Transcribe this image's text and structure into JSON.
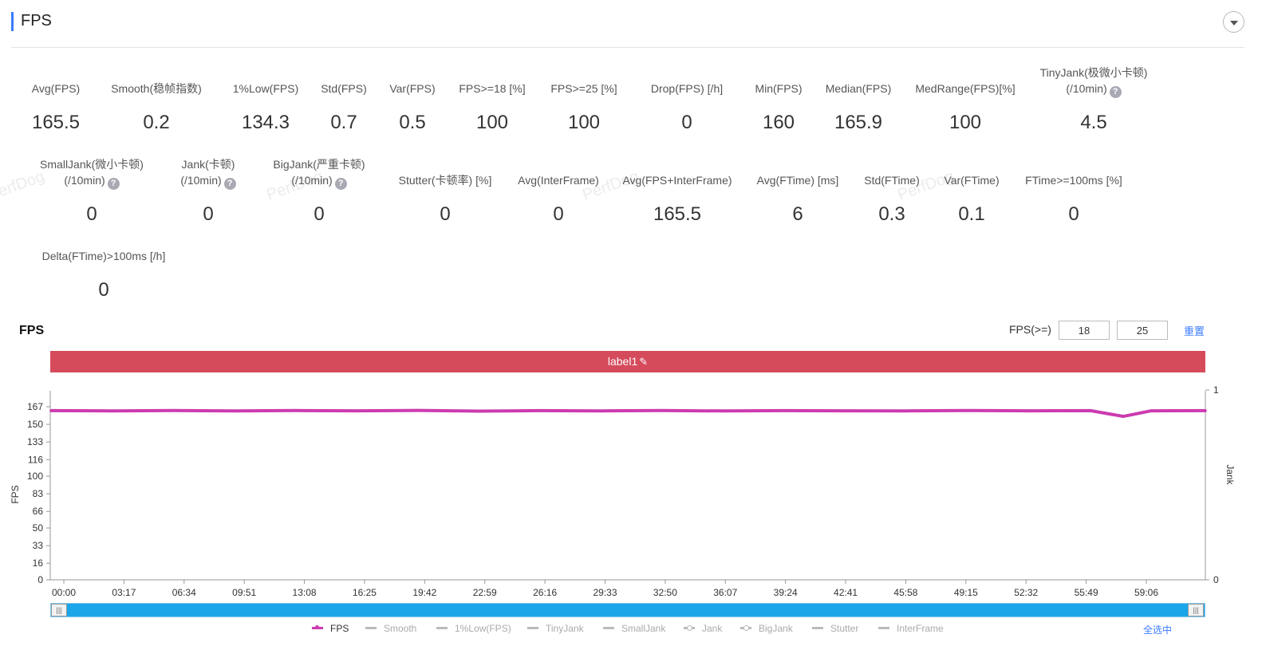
{
  "header": {
    "title": "FPS"
  },
  "metrics": [
    {
      "label": "Avg(FPS)",
      "value": "165.5"
    },
    {
      "label": "Smooth(稳帧指数)",
      "value": "0.2",
      "help": "?"
    },
    {
      "label": "1%Low(FPS)",
      "value": "134.3"
    },
    {
      "label": "Std(FPS)",
      "value": "0.7"
    },
    {
      "label": "Var(FPS)",
      "value": "0.5"
    },
    {
      "label": "FPS>=18 [%]",
      "value": "100"
    },
    {
      "label": "FPS>=25 [%]",
      "value": "100"
    },
    {
      "label": "Drop(FPS) [/h]",
      "value": "0",
      "help": "?"
    },
    {
      "label": "Min(FPS)",
      "value": "160"
    },
    {
      "label": "Median(FPS)",
      "value": "165.9"
    },
    {
      "label": "MedRange(FPS)[%]",
      "value": "100"
    },
    {
      "label": "TinyJank(极微小卡顿)",
      "label2": "(/10min)",
      "value": "4.5",
      "help": "?"
    },
    {
      "label": "SmallJank(微小卡顿)",
      "label2": "(/10min)",
      "value": "0",
      "help": "?"
    },
    {
      "label": "Jank(卡顿)",
      "label2": "(/10min)",
      "value": "0",
      "help": "?"
    },
    {
      "label": "BigJank(严重卡顿)",
      "label2": "(/10min)",
      "value": "0",
      "help": "?"
    },
    {
      "label": "Stutter(卡顿率) [%]",
      "value": "0"
    },
    {
      "label": "Avg(InterFrame)",
      "value": "0"
    },
    {
      "label": "Avg(FPS+InterFrame)",
      "value": "165.5"
    },
    {
      "label": "Avg(FTime) [ms]",
      "value": "6"
    },
    {
      "label": "Std(FTime)",
      "value": "0.3"
    },
    {
      "label": "Var(FTime)",
      "value": "0.1"
    },
    {
      "label": "FTime>=100ms [%]",
      "value": "0"
    },
    {
      "label": "Delta(FTime)>100ms [/h]",
      "value": "0",
      "help": "?"
    }
  ],
  "watermark": "PerfDog",
  "chart_section": {
    "title": "FPS",
    "fps_ge_label": "FPS(>=)",
    "threshold1": "18",
    "threshold2": "25",
    "reset_label": "重置",
    "label_band": "label1",
    "select_all": "全选中",
    "handle_glyph": "|||"
  },
  "icons": {
    "collapse": "chevron-down-icon",
    "edit": "pencil-icon",
    "help": "question-icon"
  },
  "colors": {
    "accent": "#3b7cff",
    "fps_line": "#cc3bb0",
    "label_band": "#d54b5c",
    "slider": "#1aa6e8"
  },
  "chart_data": {
    "type": "line",
    "ylabel": "FPS",
    "y2label": "Jank",
    "ylim": [
      0,
      175
    ],
    "yticks": [
      0,
      16,
      33,
      50,
      66,
      83,
      100,
      116,
      133,
      150,
      167
    ],
    "y2ticks": [
      0,
      1
    ],
    "xticks": [
      "00:00",
      "03:17",
      "06:34",
      "09:51",
      "13:08",
      "16:25",
      "19:42",
      "22:59",
      "26:16",
      "29:33",
      "32:50",
      "36:07",
      "39:24",
      "42:41",
      "45:58",
      "49:15",
      "52:32",
      "55:49",
      "59:06"
    ],
    "series": [
      {
        "name": "FPS",
        "active": true,
        "marker": "dot",
        "x_minutes": [
          0,
          3.28,
          6.57,
          9.85,
          13.13,
          16.42,
          19.7,
          22.98,
          26.27,
          29.55,
          32.83,
          36.12,
          39.4,
          42.68,
          45.97,
          49.25,
          52.53,
          55.82,
          57.6,
          59.1,
          62
        ],
        "values": [
          165.5,
          165.3,
          165.7,
          165.2,
          165.6,
          165.4,
          165.8,
          165.1,
          165.5,
          165.3,
          165.6,
          165.2,
          165.5,
          165.4,
          165.3,
          165.6,
          165.4,
          165.5,
          160,
          165.4,
          165.5
        ]
      },
      {
        "name": "Smooth",
        "active": false
      },
      {
        "name": "1%Low(FPS)",
        "active": false
      },
      {
        "name": "TinyJank",
        "active": false
      },
      {
        "name": "SmallJank",
        "active": false
      },
      {
        "name": "Jank",
        "active": false,
        "marker": "dot"
      },
      {
        "name": "BigJank",
        "active": false,
        "marker": "dot"
      },
      {
        "name": "Stutter",
        "active": false
      },
      {
        "name": "InterFrame",
        "active": false
      }
    ]
  }
}
